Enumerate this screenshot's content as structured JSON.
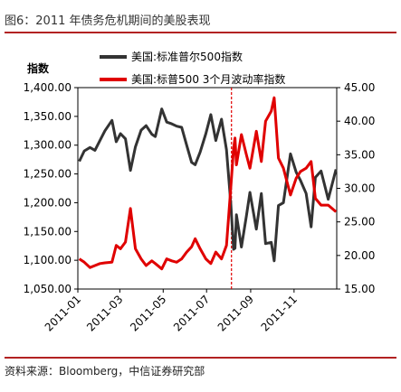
{
  "figure": {
    "title": "图6：2011 年债务危机期间的美股表现",
    "source": "资料来源：Bloomberg，中信证券研究部"
  },
  "chart_data": {
    "type": "line",
    "left_axis_label": "指数",
    "x_ticks": [
      "2011-01",
      "2011-03",
      "2011-05",
      "2011-07",
      "2011-09",
      "2011-11"
    ],
    "xlim": [
      "2011-01-01",
      "2011-12-31"
    ],
    "y_left": {
      "ticks": [
        "1,400.00",
        "1,350.00",
        "1,300.00",
        "1,250.00",
        "1,200.00",
        "1,150.00",
        "1,100.00",
        "1,050.00"
      ],
      "range": [
        1050,
        1400
      ]
    },
    "y_right": {
      "ticks": [
        "45.00",
        "40.00",
        "35.00",
        "30.00",
        "25.00",
        "20.00",
        "15.00"
      ],
      "range": [
        15,
        45
      ]
    },
    "event_marker": {
      "date": "2011-08-05",
      "style": "dashed",
      "color": "#e00000"
    },
    "series": [
      {
        "name": "美国:标准普尔500指数",
        "axis": "left",
        "color": "#333333",
        "points": [
          [
            "2011-01-03",
            1272
          ],
          [
            "2011-01-10",
            1290
          ],
          [
            "2011-01-18",
            1296
          ],
          [
            "2011-01-25",
            1291
          ],
          [
            "2011-02-01",
            1308
          ],
          [
            "2011-02-08",
            1325
          ],
          [
            "2011-02-18",
            1343
          ],
          [
            "2011-02-24",
            1306
          ],
          [
            "2011-03-02",
            1320
          ],
          [
            "2011-03-09",
            1311
          ],
          [
            "2011-03-16",
            1256
          ],
          [
            "2011-03-23",
            1297
          ],
          [
            "2011-03-31",
            1326
          ],
          [
            "2011-04-07",
            1334
          ],
          [
            "2011-04-15",
            1319
          ],
          [
            "2011-04-20",
            1315
          ],
          [
            "2011-04-29",
            1363
          ],
          [
            "2011-05-06",
            1340
          ],
          [
            "2011-05-13",
            1337
          ],
          [
            "2011-05-20",
            1333
          ],
          [
            "2011-05-27",
            1331
          ],
          [
            "2011-06-03",
            1300
          ],
          [
            "2011-06-10",
            1270
          ],
          [
            "2011-06-15",
            1266
          ],
          [
            "2011-06-22",
            1288
          ],
          [
            "2011-06-30",
            1320
          ],
          [
            "2011-07-07",
            1353
          ],
          [
            "2011-07-14",
            1308
          ],
          [
            "2011-07-22",
            1345
          ],
          [
            "2011-07-29",
            1292
          ],
          [
            "2011-08-04",
            1200
          ],
          [
            "2011-08-08",
            1119
          ],
          [
            "2011-08-10",
            1121
          ],
          [
            "2011-08-12",
            1179
          ],
          [
            "2011-08-19",
            1123
          ],
          [
            "2011-08-26",
            1177
          ],
          [
            "2011-08-31",
            1218
          ],
          [
            "2011-09-09",
            1154
          ],
          [
            "2011-09-16",
            1216
          ],
          [
            "2011-09-22",
            1129
          ],
          [
            "2011-09-30",
            1131
          ],
          [
            "2011-10-04",
            1099
          ],
          [
            "2011-10-10",
            1195
          ],
          [
            "2011-10-17",
            1200
          ],
          [
            "2011-10-27",
            1285
          ],
          [
            "2011-11-04",
            1253
          ],
          [
            "2011-11-10",
            1239
          ],
          [
            "2011-11-18",
            1216
          ],
          [
            "2011-11-25",
            1158
          ],
          [
            "2011-12-01",
            1244
          ],
          [
            "2011-12-09",
            1255
          ],
          [
            "2011-12-19",
            1206
          ],
          [
            "2011-12-30",
            1258
          ]
        ]
      },
      {
        "name": "美国:标普500 3个月波动率指数",
        "axis": "right",
        "color": "#e00000",
        "points": [
          [
            "2011-01-03",
            19.5
          ],
          [
            "2011-01-10",
            19.0
          ],
          [
            "2011-01-18",
            18.2
          ],
          [
            "2011-01-25",
            18.5
          ],
          [
            "2011-02-01",
            18.8
          ],
          [
            "2011-02-08",
            18.9
          ],
          [
            "2011-02-18",
            19.0
          ],
          [
            "2011-02-24",
            21.5
          ],
          [
            "2011-03-02",
            21.0
          ],
          [
            "2011-03-09",
            22.0
          ],
          [
            "2011-03-16",
            27.0
          ],
          [
            "2011-03-23",
            21.0
          ],
          [
            "2011-03-31",
            19.5
          ],
          [
            "2011-04-07",
            18.5
          ],
          [
            "2011-04-15",
            19.2
          ],
          [
            "2011-04-20",
            18.8
          ],
          [
            "2011-04-29",
            18.0
          ],
          [
            "2011-05-06",
            19.5
          ],
          [
            "2011-05-13",
            19.2
          ],
          [
            "2011-05-20",
            19.0
          ],
          [
            "2011-05-27",
            19.5
          ],
          [
            "2011-06-03",
            20.5
          ],
          [
            "2011-06-10",
            21.3
          ],
          [
            "2011-06-15",
            22.5
          ],
          [
            "2011-06-22",
            21.0
          ],
          [
            "2011-06-30",
            19.5
          ],
          [
            "2011-07-07",
            18.8
          ],
          [
            "2011-07-14",
            20.5
          ],
          [
            "2011-07-22",
            19.5
          ],
          [
            "2011-07-29",
            21.5
          ],
          [
            "2011-08-04",
            30.0
          ],
          [
            "2011-08-08",
            36.0
          ],
          [
            "2011-08-10",
            37.5
          ],
          [
            "2011-08-12",
            33.5
          ],
          [
            "2011-08-19",
            38.0
          ],
          [
            "2011-08-26",
            35.0
          ],
          [
            "2011-08-31",
            33.0
          ],
          [
            "2011-09-09",
            38.5
          ],
          [
            "2011-09-16",
            34.0
          ],
          [
            "2011-09-22",
            40.0
          ],
          [
            "2011-09-30",
            41.5
          ],
          [
            "2011-10-04",
            43.5
          ],
          [
            "2011-10-10",
            34.5
          ],
          [
            "2011-10-17",
            33.0
          ],
          [
            "2011-10-27",
            29.0
          ],
          [
            "2011-11-04",
            31.5
          ],
          [
            "2011-11-10",
            32.5
          ],
          [
            "2011-11-18",
            33.0
          ],
          [
            "2011-11-25",
            34.0
          ],
          [
            "2011-12-01",
            28.5
          ],
          [
            "2011-12-09",
            27.5
          ],
          [
            "2011-12-19",
            27.5
          ],
          [
            "2011-12-30",
            26.5
          ]
        ]
      }
    ]
  }
}
